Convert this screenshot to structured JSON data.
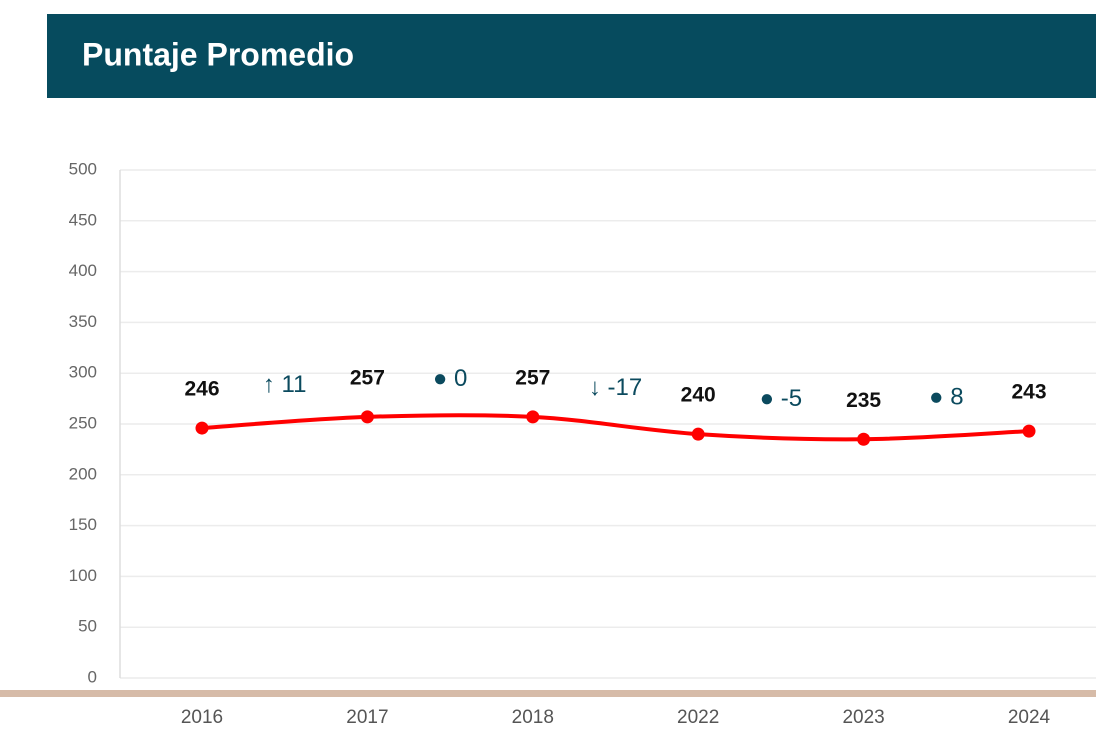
{
  "chart_data": {
    "type": "line",
    "title": "Puntaje Promedio",
    "categories": [
      "2016",
      "2017",
      "2018",
      "2022",
      "2023",
      "2024"
    ],
    "values": [
      246,
      257,
      257,
      240,
      235,
      243
    ],
    "color": "#ff0000",
    "annotations": [
      "↑ 11",
      "● 0",
      "↓ -17",
      "● -5",
      "● 8"
    ],
    "ylim": [
      0,
      500
    ],
    "yticks": [
      0,
      50,
      100,
      150,
      200,
      250,
      300,
      350,
      400,
      450,
      500
    ],
    "grid": true
  }
}
